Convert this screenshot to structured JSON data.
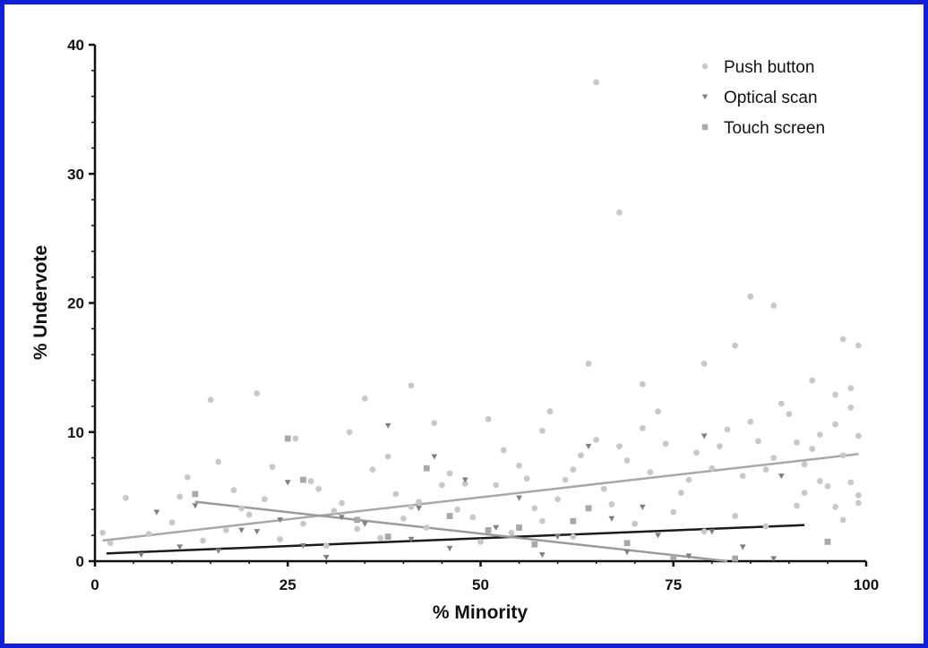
{
  "chart_data": {
    "type": "scatter",
    "xlabel": "% Minority",
    "ylabel": "% Undervote",
    "xlim": [
      0,
      100
    ],
    "ylim": [
      0,
      40
    ],
    "x_ticks": [
      "0",
      "25",
      "50",
      "75",
      "100"
    ],
    "y_ticks": [
      "0",
      "10",
      "20",
      "30",
      "40"
    ],
    "legend_position": "top-right",
    "series": [
      {
        "name": "Push button",
        "marker": "circle",
        "color": "#c8c8c8",
        "trend_color": "#a8a8a8",
        "trend": [
          [
            1,
            1.6
          ],
          [
            99,
            8.3
          ]
        ],
        "points": [
          [
            4,
            4.9
          ],
          [
            15,
            12.5
          ],
          [
            21,
            13
          ],
          [
            35,
            12.6
          ],
          [
            41,
            13.6
          ],
          [
            44,
            10.7
          ],
          [
            51,
            11
          ],
          [
            58,
            10.1
          ],
          [
            64,
            15.3
          ],
          [
            65,
            37.1
          ],
          [
            68,
            27
          ],
          [
            79,
            15.3
          ],
          [
            83,
            16.7
          ],
          [
            85,
            20.5
          ],
          [
            88,
            19.8
          ],
          [
            97,
            17.2
          ],
          [
            99,
            16.7
          ],
          [
            98,
            13.4
          ],
          [
            93,
            14
          ],
          [
            71,
            13.7
          ],
          [
            59,
            11.6
          ],
          [
            33,
            10
          ],
          [
            26,
            9.5
          ],
          [
            12,
            6.5
          ],
          [
            18,
            5.5
          ],
          [
            22,
            4.8
          ],
          [
            28,
            6.2
          ],
          [
            31,
            3.9
          ],
          [
            36,
            7.1
          ],
          [
            39,
            5.2
          ],
          [
            42,
            4.6
          ],
          [
            46,
            6.8
          ],
          [
            49,
            3.4
          ],
          [
            52,
            5.9
          ],
          [
            55,
            7.4
          ],
          [
            57,
            4.1
          ],
          [
            61,
            6.3
          ],
          [
            63,
            8.2
          ],
          [
            66,
            5.6
          ],
          [
            69,
            7.8
          ],
          [
            72,
            6.9
          ],
          [
            74,
            9.1
          ],
          [
            76,
            5.3
          ],
          [
            78,
            8.4
          ],
          [
            80,
            7.2
          ],
          [
            82,
            10.2
          ],
          [
            84,
            6.6
          ],
          [
            86,
            9.3
          ],
          [
            88,
            8
          ],
          [
            90,
            11.4
          ],
          [
            92,
            7.5
          ],
          [
            94,
            9.8
          ],
          [
            96,
            10.6
          ],
          [
            98,
            6.1
          ],
          [
            99,
            4.5
          ],
          [
            97,
            3.2
          ],
          [
            95,
            5.8
          ],
          [
            91,
            4.3
          ],
          [
            87,
            2.7
          ],
          [
            83,
            3.5
          ],
          [
            79,
            2.3
          ],
          [
            75,
            3.8
          ],
          [
            70,
            2.9
          ],
          [
            67,
            4.4
          ],
          [
            62,
            1.9
          ],
          [
            58,
            3.1
          ],
          [
            54,
            2.2
          ],
          [
            50,
            1.5
          ],
          [
            47,
            4
          ],
          [
            43,
            2.6
          ],
          [
            40,
            3.3
          ],
          [
            37,
            1.8
          ],
          [
            34,
            2.5
          ],
          [
            30,
            1.2
          ],
          [
            27,
            2.9
          ],
          [
            24,
            1.7
          ],
          [
            20,
            3.6
          ],
          [
            17,
            2.4
          ],
          [
            14,
            1.6
          ],
          [
            10,
            3
          ],
          [
            7,
            2.1
          ],
          [
            2,
            1.4
          ],
          [
            1,
            2.2
          ],
          [
            23,
            7.3
          ],
          [
            29,
            5.6
          ],
          [
            38,
            8.1
          ],
          [
            45,
            5.9
          ],
          [
            53,
            8.6
          ],
          [
            60,
            4.8
          ],
          [
            65,
            9.4
          ],
          [
            73,
            11.6
          ],
          [
            77,
            6.3
          ],
          [
            81,
            8.9
          ],
          [
            89,
            12.2
          ],
          [
            93,
            8.7
          ],
          [
            96,
            12.9
          ],
          [
            99,
            9.7
          ],
          [
            85,
            10.8
          ],
          [
            68,
            8.9
          ],
          [
            56,
            6.4
          ],
          [
            48,
            6
          ],
          [
            41,
            4.2
          ],
          [
            32,
            4.5
          ],
          [
            19,
            4.1
          ],
          [
            16,
            7.7
          ],
          [
            11,
            5
          ],
          [
            62,
            7.1
          ],
          [
            71,
            10.3
          ],
          [
            87,
            7.1
          ],
          [
            91,
            9.2
          ],
          [
            94,
            6.2
          ],
          [
            97,
            8.2
          ],
          [
            99,
            5.1
          ],
          [
            98,
            11.9
          ],
          [
            96,
            4.2
          ],
          [
            92,
            5.3
          ]
        ]
      },
      {
        "name": "Optical scan",
        "marker": "triangle",
        "color": "#808080",
        "trend_color": "#1a1a1a",
        "trend": [
          [
            1.5,
            0.6
          ],
          [
            92,
            2.8
          ]
        ],
        "points": [
          [
            8,
            3.8
          ],
          [
            13,
            4.3
          ],
          [
            25,
            6.1
          ],
          [
            38,
            10.5
          ],
          [
            44,
            8.1
          ],
          [
            48,
            6.3
          ],
          [
            64,
            8.9
          ],
          [
            55,
            4.9
          ],
          [
            32,
            3.4
          ],
          [
            21,
            2.3
          ],
          [
            11,
            1.1
          ],
          [
            16,
            0.8
          ],
          [
            27,
            1.2
          ],
          [
            35,
            2.9
          ],
          [
            41,
            1.7
          ],
          [
            52,
            2.6
          ],
          [
            60,
            1.9
          ],
          [
            67,
            3.3
          ],
          [
            73,
            2
          ],
          [
            80,
            2.3
          ],
          [
            84,
            1.1
          ],
          [
            88,
            0.2
          ],
          [
            77,
            0.4
          ],
          [
            69,
            0.7
          ],
          [
            58,
            0.5
          ],
          [
            46,
            1
          ],
          [
            30,
            0.3
          ],
          [
            19,
            2.4
          ],
          [
            6,
            0.5
          ],
          [
            42,
            4.1
          ],
          [
            24,
            3.2
          ],
          [
            71,
            4.2
          ],
          [
            79,
            9.7
          ],
          [
            89,
            6.6
          ]
        ]
      },
      {
        "name": "Touch screen",
        "marker": "square",
        "color": "#a8a8a8",
        "trend_color": "#9a9a9a",
        "trend": [
          [
            13,
            4.6
          ],
          [
            82,
            0
          ]
        ],
        "points": [
          [
            13,
            5.2
          ],
          [
            25,
            9.5
          ],
          [
            34,
            3.2
          ],
          [
            43,
            7.2
          ],
          [
            46,
            3.5
          ],
          [
            51,
            2.4
          ],
          [
            57,
            1.3
          ],
          [
            62,
            3.1
          ],
          [
            69,
            1.4
          ],
          [
            75,
            0.3
          ],
          [
            83,
            0.2
          ],
          [
            95,
            1.5
          ],
          [
            27,
            6.3
          ],
          [
            38,
            1.9
          ],
          [
            55,
            2.6
          ],
          [
            64,
            4.1
          ]
        ]
      }
    ]
  }
}
